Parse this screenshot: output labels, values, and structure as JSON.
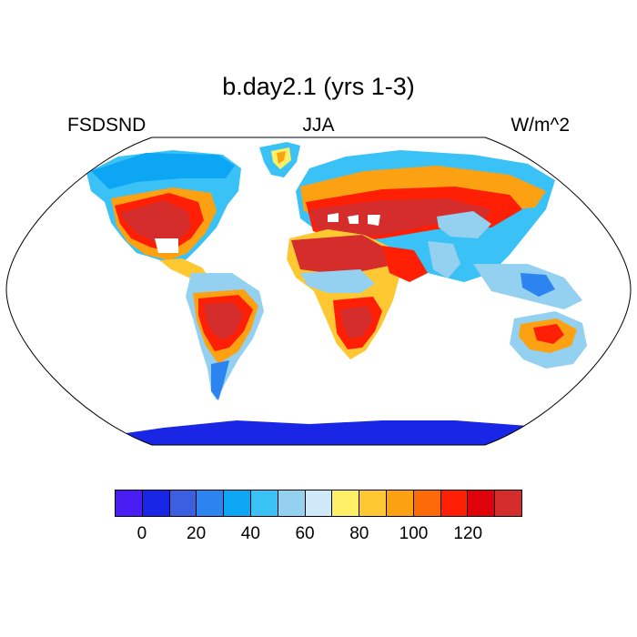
{
  "header": {
    "title": "b.day2.1 (yrs 1-3)",
    "left_label": "FSDSND",
    "center_label": "JJA",
    "right_label": "W/m^2"
  },
  "colorbar": {
    "colors": [
      "#4a1df5",
      "#1a26e6",
      "#3a5fe0",
      "#2b84f0",
      "#0ca6f5",
      "#3ac2f7",
      "#94d0f0",
      "#cfe9f8",
      "#fdf067",
      "#fdc832",
      "#fca112",
      "#fd6b08",
      "#fe1f05",
      "#e0020b",
      "#d52c2c"
    ],
    "tick_labels": [
      "0",
      "20",
      "40",
      "60",
      "80",
      "100",
      "120"
    ],
    "tick_positions": [
      1,
      3,
      5,
      7,
      9,
      11,
      13
    ]
  },
  "map": {
    "projection": "robinson",
    "ocean_color": "#ffffff",
    "outline_color": "#000000"
  }
}
